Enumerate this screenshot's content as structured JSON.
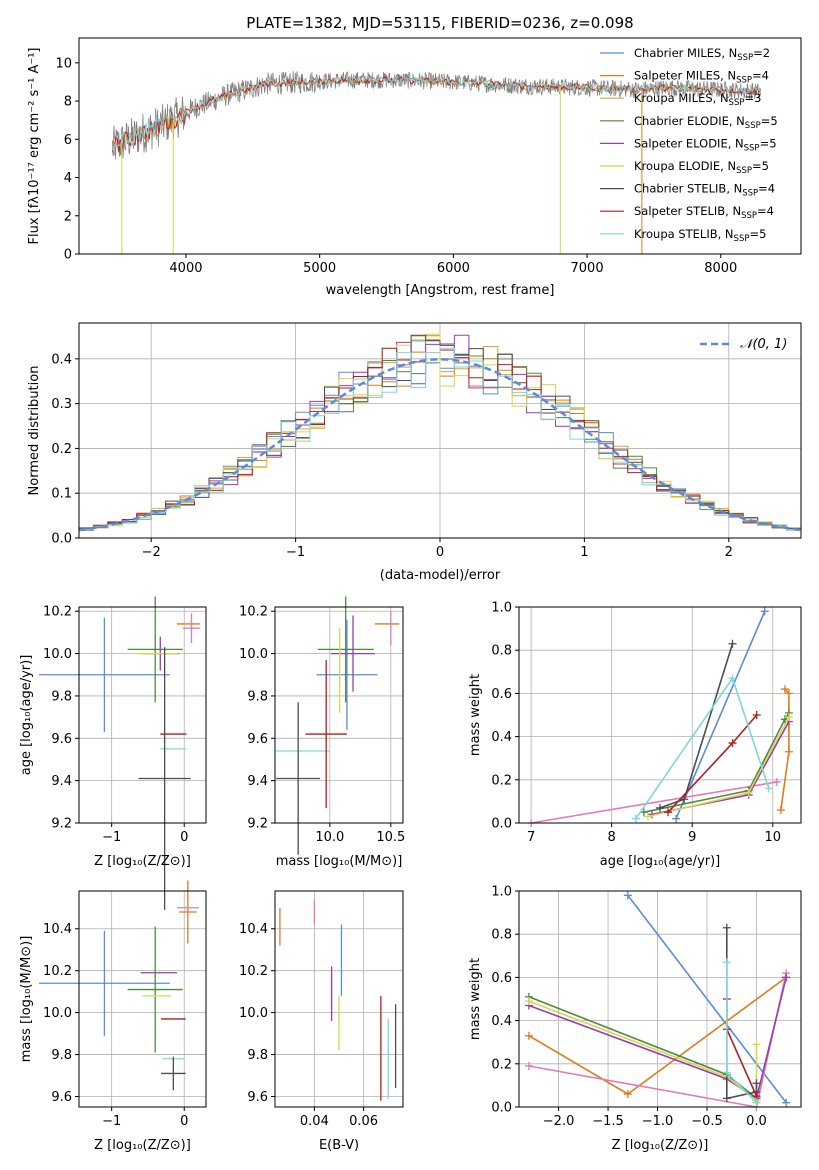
{
  "figure_title": "PLATE=1382, MJD=53115, FIBERID=0236, z=0.098",
  "colors": {
    "data_gray": "#808080",
    "fits": [
      "#5b8bd9",
      "#e07a1f",
      "#d9a441",
      "#4e8a3d",
      "#9a3bb3",
      "#d6d84b",
      "#4d4d4d",
      "#b01f1f",
      "#7fd6dd"
    ],
    "normal_curve": "#5b8bd9",
    "extra_pink": "#e27bb5"
  },
  "chart_data": [
    {
      "id": "spectrum",
      "type": "line",
      "xlabel": "wavelength [Angstrom, rest frame]",
      "ylabel": "Flux [fλ10⁻¹⁷ erg cm⁻² s⁻¹ A⁻¹]",
      "xlim": [
        3200,
        8600
      ],
      "ylim": [
        0,
        11.3
      ],
      "xticks": [
        "4000",
        "5000",
        "6000",
        "7000",
        "8000"
      ],
      "yticks": [
        "0",
        "2",
        "4",
        "6",
        "8",
        "10"
      ],
      "legend_position": "upper right",
      "grid": false,
      "series": [
        {
          "name": "Chabrier MILES, N_SSP=2"
        },
        {
          "name": "Salpeter MILES, N_SSP=4"
        },
        {
          "name": "Kroupa MILES, N_SSP=3"
        },
        {
          "name": "Chabrier ELODIE, N_SSP=5"
        },
        {
          "name": "Salpeter ELODIE, N_SSP=5"
        },
        {
          "name": "Kroupa ELODIE, N_SSP=5"
        },
        {
          "name": "Chabrier STELIB, N_SSP=4"
        },
        {
          "name": "Salpeter STELIB, N_SSP=4"
        },
        {
          "name": "Kroupa STELIB, N_SSP=5"
        }
      ],
      "legend": [
        {
          "pre": "Chabrier MILES, N",
          "sub": "SSP",
          "post": "=2"
        },
        {
          "pre": "Salpeter MILES, N",
          "sub": "SSP",
          "post": "=4"
        },
        {
          "pre": "Kroupa MILES, N",
          "sub": "SSP",
          "post": "=3"
        },
        {
          "pre": "Chabrier ELODIE, N",
          "sub": "SSP",
          "post": "=5"
        },
        {
          "pre": "Salpeter ELODIE, N",
          "sub": "SSP",
          "post": "=5"
        },
        {
          "pre": "Kroupa ELODIE, N",
          "sub": "SSP",
          "post": "=5"
        },
        {
          "pre": "Chabrier STELIB, N",
          "sub": "SSP",
          "post": "=4"
        },
        {
          "pre": "Salpeter STELIB, N",
          "sub": "SSP",
          "post": "=4"
        },
        {
          "pre": "Kroupa STELIB, N",
          "sub": "SSP",
          "post": "=5"
        }
      ],
      "continuum": {
        "x": [
          3450,
          3700,
          3900,
          4050,
          4300,
          4600,
          4900,
          5200,
          5600,
          6000,
          6500,
          7000,
          7400,
          7600,
          8000,
          8300
        ],
        "y": [
          5.6,
          6.4,
          7.0,
          7.6,
          8.3,
          8.9,
          9.0,
          9.1,
          9.1,
          9.0,
          8.8,
          8.7,
          8.6,
          8.7,
          8.6,
          8.5
        ]
      },
      "spikes": [
        {
          "x": 3520,
          "y": 0
        },
        {
          "x": 3905,
          "y": 0
        },
        {
          "x": 6800,
          "y": 0
        },
        {
          "x": 7410,
          "y": 0
        }
      ]
    },
    {
      "id": "residuals",
      "type": "line",
      "xlabel": "(data-model)/error",
      "ylabel": "Normed distribution",
      "xlim": [
        -2.5,
        2.5
      ],
      "ylim": [
        0,
        0.48
      ],
      "xticks": [
        "−2",
        "−1",
        "0",
        "1",
        "2"
      ],
      "yticks": [
        "0.0",
        "0.1",
        "0.2",
        "0.3",
        "0.4"
      ],
      "legend": "𝒩(0, 1)",
      "grid": true
    },
    {
      "id": "age_vs_Z",
      "type": "scatter",
      "xlabel": "Z [log₁₀(Z/Z⊙)]",
      "ylabel": "age  [log₁₀(age/yr)]",
      "xlim": [
        -1.45,
        0.3
      ],
      "ylim": [
        9.2,
        10.22
      ],
      "xticks": [
        {
          "v": -1,
          "t": "−1"
        },
        {
          "v": 0,
          "t": "0"
        }
      ],
      "yticks": [
        {
          "v": 9.2,
          "t": "9.2"
        },
        {
          "v": 9.4,
          "t": "9.4"
        },
        {
          "v": 9.6,
          "t": "9.6"
        },
        {
          "v": 9.8,
          "t": "9.8"
        },
        {
          "v": 10.0,
          "t": "10.0"
        },
        {
          "v": 10.2,
          "t": "10.2"
        }
      ],
      "errorbars": [
        {
          "c": 0,
          "x": -1.1,
          "y": 9.9,
          "xerr": 0.9,
          "yerr": 0.27
        },
        {
          "c": 1,
          "x": 0.06,
          "y": 10.14,
          "xerr": 0.16,
          "yerr": 0.0
        },
        {
          "c": 8,
          "x": -0.15,
          "y": 9.55,
          "xerr": 0.18,
          "yerr": 0.0
        },
        {
          "c": 3,
          "x": -0.4,
          "y": 10.02,
          "xerr": 0.38,
          "yerr": 0.25
        },
        {
          "c": 4,
          "x": -0.33,
          "y": 10.0,
          "xerr": 0.26,
          "yerr": 0.08
        },
        {
          "c": 5,
          "x": -0.38,
          "y": 10.0,
          "xerr": 0.3,
          "yerr": 0.0
        },
        {
          "c": 6,
          "x": -0.27,
          "y": 9.41,
          "xerr": 0.36,
          "yerr": 0.62
        },
        {
          "c": 7,
          "x": -0.15,
          "y": 9.62,
          "xerr": 0.18,
          "yerr": 0.0
        },
        {
          "c": 9,
          "x": 0.1,
          "y": 10.12,
          "xerr": 0.12,
          "yerr": 0.07
        }
      ]
    },
    {
      "id": "age_vs_mass",
      "type": "scatter",
      "xlabel": "mass [log₁₀(M/M⊙)]",
      "ylabel": "",
      "xlim": [
        9.55,
        10.6
      ],
      "ylim": [
        9.2,
        10.22
      ],
      "xticks": [
        {
          "v": 10.0,
          "t": "10.0"
        },
        {
          "v": 10.5,
          "t": "10.5"
        }
      ],
      "yticks": [
        {
          "v": 9.2,
          "t": "9.2"
        },
        {
          "v": 9.4,
          "t": "9.4"
        },
        {
          "v": 9.6,
          "t": "9.6"
        },
        {
          "v": 9.8,
          "t": "9.8"
        },
        {
          "v": 10.0,
          "t": "10.0"
        },
        {
          "v": 10.2,
          "t": "10.2"
        }
      ],
      "errorbars": [
        {
          "c": 0,
          "x": 10.14,
          "y": 9.9,
          "xerr": 0.25,
          "yerr": 0.26
        },
        {
          "c": 1,
          "x": 10.47,
          "y": 10.14,
          "xerr": 0.1,
          "yerr": 0.0
        },
        {
          "c": 8,
          "x": 9.78,
          "y": 9.54,
          "xerr": 0.22,
          "yerr": 0.0
        },
        {
          "c": 3,
          "x": 10.13,
          "y": 10.02,
          "xerr": 0.23,
          "yerr": 0.25
        },
        {
          "c": 4,
          "x": 10.19,
          "y": 10.0,
          "xerr": 0.18,
          "yerr": 0.18
        },
        {
          "c": 5,
          "x": 10.08,
          "y": 9.92,
          "xerr": 0.0,
          "yerr": 0.2
        },
        {
          "c": 6,
          "x": 9.74,
          "y": 9.41,
          "xerr": 0.18,
          "yerr": 0.36
        },
        {
          "c": 7,
          "x": 9.97,
          "y": 9.62,
          "xerr": 0.17,
          "yerr": 0.35
        },
        {
          "c": 9,
          "x": 10.5,
          "y": 10.12,
          "xerr": 0.0,
          "yerr": 0.08
        }
      ]
    },
    {
      "id": "weight_vs_age",
      "type": "line",
      "xlabel": "age  [log₁₀(age/yr)]",
      "ylabel": "mass weight",
      "xlim": [
        6.85,
        10.35
      ],
      "ylim": [
        0,
        1.0
      ],
      "xticks": [
        {
          "v": 7,
          "t": "7"
        },
        {
          "v": 8,
          "t": "8"
        },
        {
          "v": 9,
          "t": "9"
        },
        {
          "v": 10,
          "t": "10"
        }
      ],
      "yticks": [
        {
          "v": 0,
          "t": "0.0"
        },
        {
          "v": 0.2,
          "t": "0.2"
        },
        {
          "v": 0.4,
          "t": "0.4"
        },
        {
          "v": 0.6,
          "t": "0.6"
        },
        {
          "v": 0.8,
          "t": "0.8"
        },
        {
          "v": 1.0,
          "t": "1.0"
        }
      ],
      "series": [
        {
          "c": 0,
          "x": [
            8.8,
            9.9
          ],
          "y": [
            0.02,
            0.98
          ]
        },
        {
          "c": 1,
          "x": [
            10.1,
            10.2,
            10.2,
            10.15
          ],
          "y": [
            0.06,
            0.33,
            0.6,
            0.62
          ]
        },
        {
          "c": 9,
          "x": [
            7.0,
            10.05
          ],
          "y": [
            0.0,
            0.19
          ]
        },
        {
          "c": 3,
          "x": [
            8.4,
            9.7,
            10.15,
            10.2
          ],
          "y": [
            0.05,
            0.15,
            0.48,
            0.51
          ]
        },
        {
          "c": 4,
          "x": [
            8.5,
            9.7,
            10.2
          ],
          "y": [
            0.04,
            0.13,
            0.47
          ]
        },
        {
          "c": 5,
          "x": [
            8.45,
            9.7,
            10.2
          ],
          "y": [
            0.03,
            0.14,
            0.49
          ]
        },
        {
          "c": 6,
          "x": [
            8.6,
            8.9,
            9.5
          ],
          "y": [
            0.07,
            0.11,
            0.83
          ]
        },
        {
          "c": 7,
          "x": [
            8.7,
            9.5,
            9.8
          ],
          "y": [
            0.05,
            0.37,
            0.5
          ]
        },
        {
          "c": 8,
          "x": [
            8.3,
            9.5,
            9.95
          ],
          "y": [
            0.02,
            0.67,
            0.16
          ]
        }
      ]
    },
    {
      "id": "mass_vs_Z",
      "type": "scatter",
      "xlabel": "Z [log₁₀(Z/Z⊙)]",
      "ylabel": "mass [log₁₀(M/M⊙)]",
      "xlim": [
        -1.45,
        0.3
      ],
      "ylim": [
        9.55,
        10.58
      ],
      "xticks": [
        {
          "v": -1,
          "t": "−1"
        },
        {
          "v": 0,
          "t": "0"
        }
      ],
      "yticks": [
        {
          "v": 9.6,
          "t": "9.6"
        },
        {
          "v": 9.8,
          "t": "9.8"
        },
        {
          "v": 10.0,
          "t": "10.0"
        },
        {
          "v": 10.2,
          "t": "10.2"
        },
        {
          "v": 10.4,
          "t": "10.4"
        }
      ],
      "errorbars": [
        {
          "c": 0,
          "x": -1.1,
          "y": 10.14,
          "xerr": 0.9,
          "yerr": 0.25
        },
        {
          "c": 1,
          "x": 0.05,
          "y": 10.48,
          "xerr": 0.12,
          "yerr": 0.15
        },
        {
          "c": 9,
          "x": 0.05,
          "y": 10.5,
          "xerr": 0.15,
          "yerr": 0.0
        },
        {
          "c": 4,
          "x": -0.35,
          "y": 10.19,
          "xerr": 0.25,
          "yerr": 0.0
        },
        {
          "c": 3,
          "x": -0.4,
          "y": 10.11,
          "xerr": 0.38,
          "yerr": 0.3
        },
        {
          "c": 5,
          "x": -0.38,
          "y": 10.08,
          "xerr": 0.2,
          "yerr": 0.0
        },
        {
          "c": 7,
          "x": -0.15,
          "y": 9.97,
          "xerr": 0.17,
          "yerr": 0.0
        },
        {
          "c": 8,
          "x": -0.15,
          "y": 9.78,
          "xerr": 0.15,
          "yerr": 0.0
        },
        {
          "c": 6,
          "x": -0.15,
          "y": 9.71,
          "xerr": 0.17,
          "yerr": 0.08
        }
      ]
    },
    {
      "id": "mass_vs_EBV",
      "type": "scatter",
      "xlabel": "E(B-V)",
      "ylabel": "",
      "xlim": [
        0.024,
        0.076
      ],
      "ylim": [
        9.55,
        10.58
      ],
      "xticks": [
        {
          "v": 0.04,
          "t": "0.04"
        },
        {
          "v": 0.06,
          "t": "0.06"
        }
      ],
      "yticks": [
        {
          "v": 9.6,
          "t": "9.6"
        },
        {
          "v": 9.8,
          "t": "9.8"
        },
        {
          "v": 10.0,
          "t": "10.0"
        },
        {
          "v": 10.2,
          "t": "10.2"
        },
        {
          "v": 10.4,
          "t": "10.4"
        }
      ],
      "errorbars": [
        {
          "c": 1,
          "x": 0.026,
          "y": 10.41,
          "xerr": 0.0,
          "yerr": 0.09
        },
        {
          "c": 9,
          "x": 0.04,
          "y": 10.48,
          "xerr": 0.0,
          "yerr": 0.06
        },
        {
          "c": 0,
          "x": 0.051,
          "y": 10.25,
          "xerr": 0.0,
          "yerr": 0.17
        },
        {
          "c": 4,
          "x": 0.047,
          "y": 10.09,
          "xerr": 0.0,
          "yerr": 0.13
        },
        {
          "c": 5,
          "x": 0.05,
          "y": 9.95,
          "xerr": 0.0,
          "yerr": 0.13
        },
        {
          "c": 7,
          "x": 0.067,
          "y": 9.83,
          "xerr": 0.0,
          "yerr": 0.25
        },
        {
          "c": 8,
          "x": 0.07,
          "y": 9.78,
          "xerr": 0.0,
          "yerr": 0.19
        },
        {
          "c": 6,
          "x": 0.073,
          "y": 9.84,
          "xerr": 0.0,
          "yerr": 0.2
        }
      ]
    },
    {
      "id": "weight_vs_Z",
      "type": "line",
      "xlabel": "Z [log₁₀(Z/Z⊙)]",
      "ylabel": "mass weight",
      "xlim": [
        -2.4,
        0.45
      ],
      "ylim": [
        0,
        1.0
      ],
      "xticks": [
        {
          "v": -2.0,
          "t": "−2.0"
        },
        {
          "v": -1.5,
          "t": "−1.5"
        },
        {
          "v": -1.0,
          "t": "−1.0"
        },
        {
          "v": -0.5,
          "t": "−0.5"
        },
        {
          "v": 0.0,
          "t": "0.0"
        }
      ],
      "yticks": [
        {
          "v": 0,
          "t": "0.0"
        },
        {
          "v": 0.2,
          "t": "0.2"
        },
        {
          "v": 0.4,
          "t": "0.4"
        },
        {
          "v": 0.6,
          "t": "0.6"
        },
        {
          "v": 0.8,
          "t": "0.8"
        },
        {
          "v": 1.0,
          "t": "1.0"
        }
      ],
      "series": [
        {
          "c": 0,
          "x": [
            -1.3,
            0.3
          ],
          "y": [
            0.98,
            0.02
          ]
        },
        {
          "c": 1,
          "x": [
            -2.3,
            -1.3,
            0.3
          ],
          "y": [
            0.33,
            0.06,
            0.6
          ]
        },
        {
          "c": 9,
          "x": [
            -2.3,
            0.0,
            0.3
          ],
          "y": [
            0.19,
            0.0,
            0.62
          ]
        },
        {
          "c": 3,
          "x": [
            -2.3,
            -0.3,
            0.0
          ],
          "y": [
            0.51,
            0.15,
            0.04
          ]
        },
        {
          "c": 4,
          "x": [
            -2.3,
            -0.3,
            0.0,
            0.3
          ],
          "y": [
            0.47,
            0.13,
            0.04,
            0.6
          ]
        },
        {
          "c": 5,
          "x": [
            -2.3,
            -0.3,
            0.0,
            0.0
          ],
          "y": [
            0.49,
            0.14,
            0.03,
            0.29
          ]
        },
        {
          "c": 6,
          "x": [
            -0.3,
            -0.3,
            0.0,
            0.0
          ],
          "y": [
            0.83,
            0.04,
            0.07,
            0.11
          ]
        },
        {
          "c": 7,
          "x": [
            -0.3,
            -0.3,
            0.0
          ],
          "y": [
            0.5,
            0.36,
            0.05
          ]
        },
        {
          "c": 8,
          "x": [
            -0.3,
            -0.3,
            0.0
          ],
          "y": [
            0.67,
            0.16,
            0.02
          ]
        }
      ]
    }
  ]
}
